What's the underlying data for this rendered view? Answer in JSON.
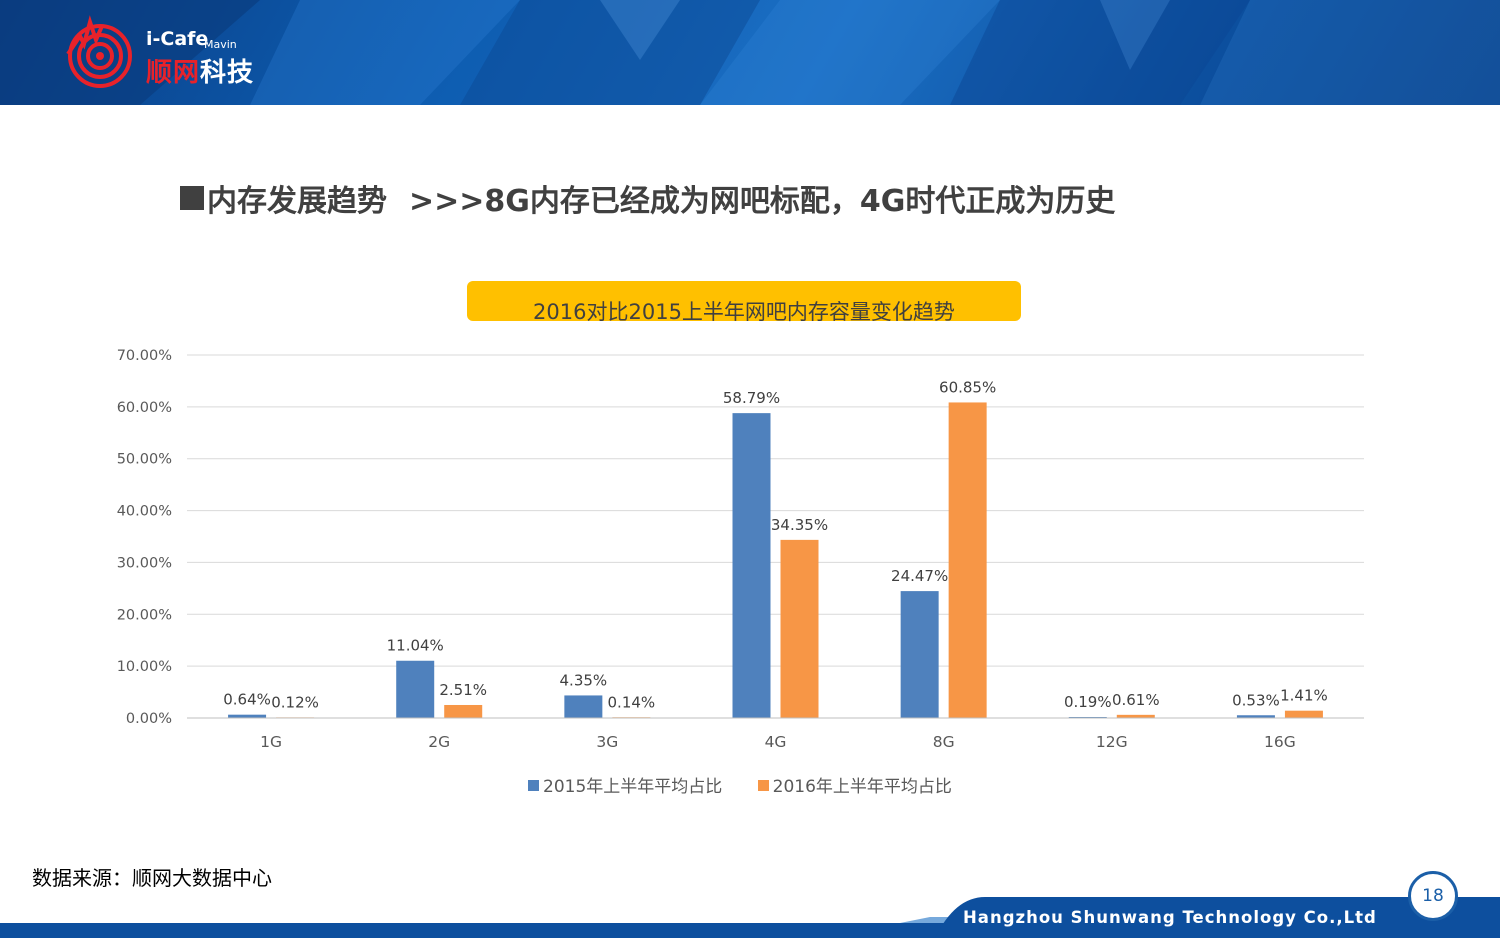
{
  "header": {
    "logo_en": "i-Cafe",
    "logo_mavin": "Mavin",
    "logo_cn_red": "顺网",
    "logo_cn_white": "科技"
  },
  "slide_title": {
    "main": "内存发展趋势",
    "sub": ">>>8G内存已经成为网吧标配，4G时代正成为历史"
  },
  "footer": {
    "source": "数据来源：顺网大数据中心",
    "company": "Hangzhou Shunwang Technology Co.,Ltd",
    "page_number": "18"
  },
  "colors": {
    "series_2015": "#4f81bd",
    "series_2016": "#f79646",
    "title_box": "#ffc000",
    "brand_blue": "#0d5cb0",
    "brand_red": "#e8222a"
  },
  "chart_data": {
    "type": "bar",
    "title": "2016对比2015上半年网吧内存容量变化趋势",
    "categories": [
      "1G",
      "2G",
      "3G",
      "4G",
      "8G",
      "12G",
      "16G"
    ],
    "series": [
      {
        "name": "2015年上半年平均占比",
        "values": [
          0.64,
          11.04,
          4.35,
          58.79,
          24.47,
          0.19,
          0.53
        ],
        "labels": [
          "0.64%",
          "11.04%",
          "4.35%",
          "58.79%",
          "24.47%",
          "0.19%",
          "0.53%"
        ]
      },
      {
        "name": "2016年上半年平均占比",
        "values": [
          0.12,
          2.51,
          0.14,
          34.35,
          60.85,
          0.61,
          1.41
        ],
        "labels": [
          "0.12%",
          "2.51%",
          "0.14%",
          "34.35%",
          "60.85%",
          "0.61%",
          "1.41%"
        ]
      }
    ],
    "ylim": [
      0,
      70
    ],
    "yticks": [
      "0.00%",
      "10.00%",
      "20.00%",
      "30.00%",
      "40.00%",
      "50.00%",
      "60.00%",
      "70.00%"
    ],
    "grid": true,
    "legend_position": "bottom"
  }
}
